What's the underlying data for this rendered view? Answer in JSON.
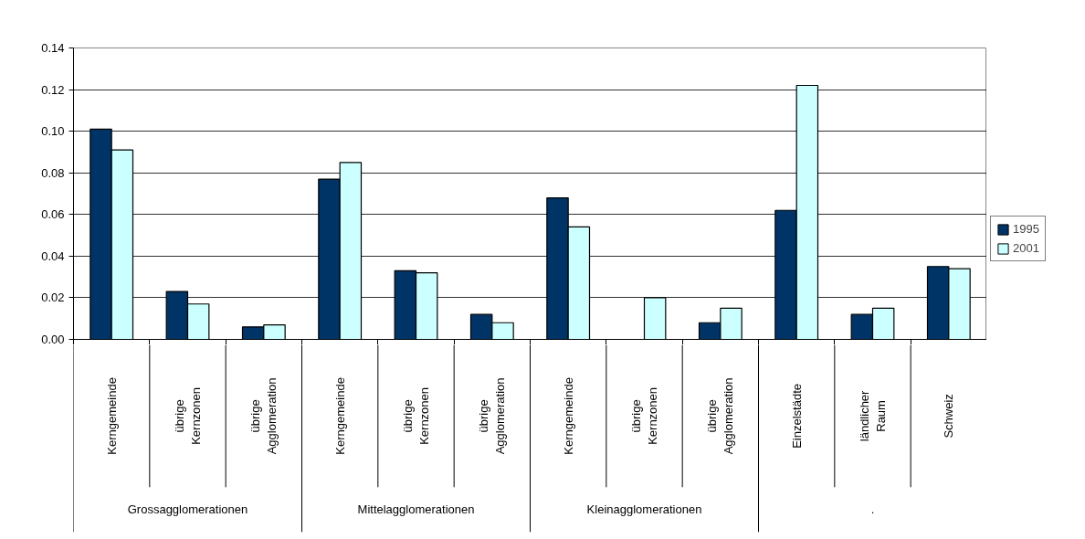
{
  "chart_data": {
    "type": "bar",
    "categories": [
      "Kerngemeinde",
      "übrige\nKernzonen",
      "übrige\nAgglomeration",
      "Kerngemeinde",
      "übrige\nKernzonen",
      "übrige\nAgglomeration",
      "Kerngemeinde",
      "übrige\nKernzonen",
      "übrige\nAgglomeration",
      "Einzelstädte",
      "ländlicher\nRaum",
      "Schweiz"
    ],
    "series": [
      {
        "name": "1995",
        "color": "#003366",
        "values": [
          0.101,
          0.023,
          0.006,
          0.077,
          0.033,
          0.012,
          0.068,
          null,
          0.008,
          0.062,
          0.012,
          0.035
        ]
      },
      {
        "name": "2001",
        "color": "#ccffff",
        "values": [
          0.091,
          0.017,
          0.007,
          0.085,
          0.032,
          0.008,
          0.054,
          0.02,
          0.015,
          0.122,
          0.015,
          0.034
        ]
      }
    ],
    "annotations": [
      "Grossagglomerationen",
      "Mittelagglomerationen",
      "Kleinagglomerationen",
      "."
    ],
    "ylim": [
      0,
      0.14
    ],
    "yticks": [
      {
        "value": 0,
        "label": "0.00"
      },
      {
        "value": 0.02,
        "label": "0.02"
      },
      {
        "value": 0.04,
        "label": "0.04"
      },
      {
        "value": 0.06,
        "label": "0.06"
      },
      {
        "value": 0.08,
        "label": "0.08"
      },
      {
        "value": 0.1,
        "label": "0.10"
      },
      {
        "value": 0.12,
        "label": "0.12"
      },
      {
        "value": 0.14,
        "label": "0.14"
      }
    ],
    "grid": "y",
    "legend": "right"
  }
}
